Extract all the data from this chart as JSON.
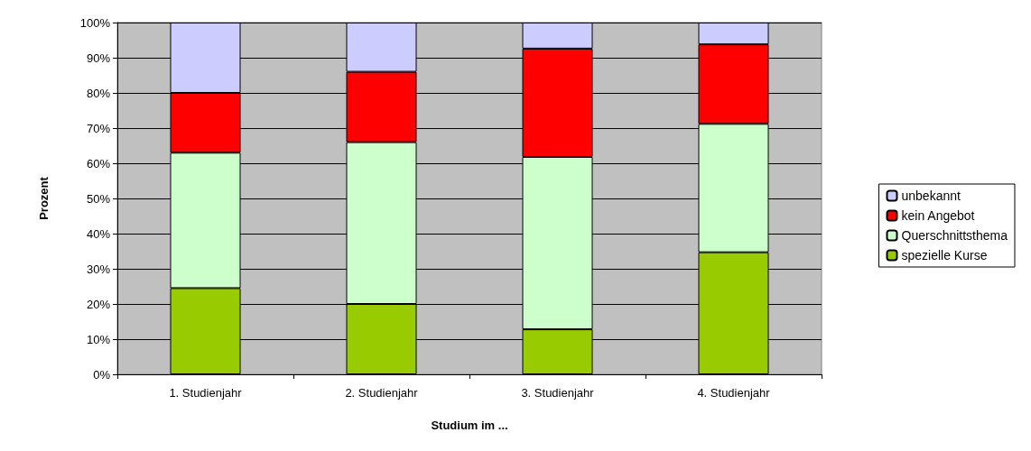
{
  "chart_data": {
    "type": "bar",
    "stacked": true,
    "xlabel": "Studium im ...",
    "ylabel": "Prozent",
    "categories": [
      "1. Studienjahr",
      "2. Studienjahr",
      "3. Studienjahr",
      "4. Studienjahr"
    ],
    "series": [
      {
        "name": "spezielle Kurse",
        "color": "#99cc00",
        "values": [
          24.5,
          20,
          12.8,
          34.7
        ]
      },
      {
        "name": "Querschnittsthema",
        "color": "#ccffcc",
        "values": [
          38.5,
          46,
          49,
          36.5
        ]
      },
      {
        "name": "kein Angebot",
        "color": "#ff0000",
        "values": [
          17,
          20,
          30.8,
          22.6
        ]
      },
      {
        "name": "unbekannt",
        "color": "#ccccff",
        "values": [
          20,
          14,
          7.4,
          6.2
        ]
      }
    ],
    "ylim": [
      0,
      100
    ],
    "yticks": [
      {
        "value": 0,
        "label": "0%"
      },
      {
        "value": 10,
        "label": "10%"
      },
      {
        "value": 20,
        "label": "20%"
      },
      {
        "value": 30,
        "label": "30%"
      },
      {
        "value": 40,
        "label": "40%"
      },
      {
        "value": 50,
        "label": "50%"
      },
      {
        "value": 60,
        "label": "60%"
      },
      {
        "value": 70,
        "label": "70%"
      },
      {
        "value": 80,
        "label": "80%"
      },
      {
        "value": 90,
        "label": "90%"
      },
      {
        "value": 100,
        "label": "100%"
      }
    ],
    "grid": "y",
    "legend": "right"
  }
}
